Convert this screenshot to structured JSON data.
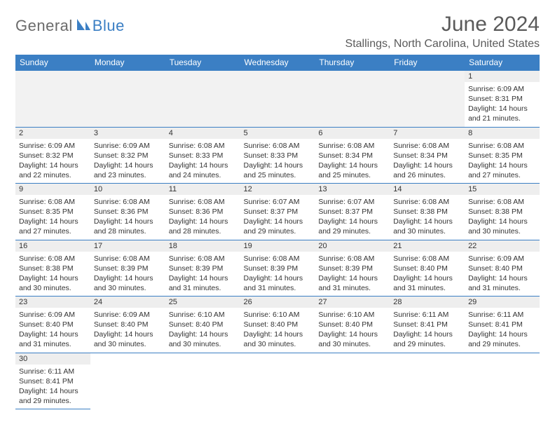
{
  "logo": {
    "text1": "General",
    "text2": "Blue",
    "icon_color": "#3b7fc4"
  },
  "title": "June 2024",
  "location": "Stallings, North Carolina, United States",
  "colors": {
    "header_bg": "#3b7fc4",
    "header_text": "#ffffff",
    "daynum_bg": "#eeeeee",
    "row_border": "#3b7fc4",
    "body_text": "#333333",
    "title_text": "#5a5a5a"
  },
  "weekdays": [
    "Sunday",
    "Monday",
    "Tuesday",
    "Wednesday",
    "Thursday",
    "Friday",
    "Saturday"
  ],
  "days": {
    "1": {
      "sunrise": "Sunrise: 6:09 AM",
      "sunset": "Sunset: 8:31 PM",
      "daylight1": "Daylight: 14 hours",
      "daylight2": "and 21 minutes."
    },
    "2": {
      "sunrise": "Sunrise: 6:09 AM",
      "sunset": "Sunset: 8:32 PM",
      "daylight1": "Daylight: 14 hours",
      "daylight2": "and 22 minutes."
    },
    "3": {
      "sunrise": "Sunrise: 6:09 AM",
      "sunset": "Sunset: 8:32 PM",
      "daylight1": "Daylight: 14 hours",
      "daylight2": "and 23 minutes."
    },
    "4": {
      "sunrise": "Sunrise: 6:08 AM",
      "sunset": "Sunset: 8:33 PM",
      "daylight1": "Daylight: 14 hours",
      "daylight2": "and 24 minutes."
    },
    "5": {
      "sunrise": "Sunrise: 6:08 AM",
      "sunset": "Sunset: 8:33 PM",
      "daylight1": "Daylight: 14 hours",
      "daylight2": "and 25 minutes."
    },
    "6": {
      "sunrise": "Sunrise: 6:08 AM",
      "sunset": "Sunset: 8:34 PM",
      "daylight1": "Daylight: 14 hours",
      "daylight2": "and 25 minutes."
    },
    "7": {
      "sunrise": "Sunrise: 6:08 AM",
      "sunset": "Sunset: 8:34 PM",
      "daylight1": "Daylight: 14 hours",
      "daylight2": "and 26 minutes."
    },
    "8": {
      "sunrise": "Sunrise: 6:08 AM",
      "sunset": "Sunset: 8:35 PM",
      "daylight1": "Daylight: 14 hours",
      "daylight2": "and 27 minutes."
    },
    "9": {
      "sunrise": "Sunrise: 6:08 AM",
      "sunset": "Sunset: 8:35 PM",
      "daylight1": "Daylight: 14 hours",
      "daylight2": "and 27 minutes."
    },
    "10": {
      "sunrise": "Sunrise: 6:08 AM",
      "sunset": "Sunset: 8:36 PM",
      "daylight1": "Daylight: 14 hours",
      "daylight2": "and 28 minutes."
    },
    "11": {
      "sunrise": "Sunrise: 6:08 AM",
      "sunset": "Sunset: 8:36 PM",
      "daylight1": "Daylight: 14 hours",
      "daylight2": "and 28 minutes."
    },
    "12": {
      "sunrise": "Sunrise: 6:07 AM",
      "sunset": "Sunset: 8:37 PM",
      "daylight1": "Daylight: 14 hours",
      "daylight2": "and 29 minutes."
    },
    "13": {
      "sunrise": "Sunrise: 6:07 AM",
      "sunset": "Sunset: 8:37 PM",
      "daylight1": "Daylight: 14 hours",
      "daylight2": "and 29 minutes."
    },
    "14": {
      "sunrise": "Sunrise: 6:08 AM",
      "sunset": "Sunset: 8:38 PM",
      "daylight1": "Daylight: 14 hours",
      "daylight2": "and 30 minutes."
    },
    "15": {
      "sunrise": "Sunrise: 6:08 AM",
      "sunset": "Sunset: 8:38 PM",
      "daylight1": "Daylight: 14 hours",
      "daylight2": "and 30 minutes."
    },
    "16": {
      "sunrise": "Sunrise: 6:08 AM",
      "sunset": "Sunset: 8:38 PM",
      "daylight1": "Daylight: 14 hours",
      "daylight2": "and 30 minutes."
    },
    "17": {
      "sunrise": "Sunrise: 6:08 AM",
      "sunset": "Sunset: 8:39 PM",
      "daylight1": "Daylight: 14 hours",
      "daylight2": "and 30 minutes."
    },
    "18": {
      "sunrise": "Sunrise: 6:08 AM",
      "sunset": "Sunset: 8:39 PM",
      "daylight1": "Daylight: 14 hours",
      "daylight2": "and 31 minutes."
    },
    "19": {
      "sunrise": "Sunrise: 6:08 AM",
      "sunset": "Sunset: 8:39 PM",
      "daylight1": "Daylight: 14 hours",
      "daylight2": "and 31 minutes."
    },
    "20": {
      "sunrise": "Sunrise: 6:08 AM",
      "sunset": "Sunset: 8:39 PM",
      "daylight1": "Daylight: 14 hours",
      "daylight2": "and 31 minutes."
    },
    "21": {
      "sunrise": "Sunrise: 6:08 AM",
      "sunset": "Sunset: 8:40 PM",
      "daylight1": "Daylight: 14 hours",
      "daylight2": "and 31 minutes."
    },
    "22": {
      "sunrise": "Sunrise: 6:09 AM",
      "sunset": "Sunset: 8:40 PM",
      "daylight1": "Daylight: 14 hours",
      "daylight2": "and 31 minutes."
    },
    "23": {
      "sunrise": "Sunrise: 6:09 AM",
      "sunset": "Sunset: 8:40 PM",
      "daylight1": "Daylight: 14 hours",
      "daylight2": "and 31 minutes."
    },
    "24": {
      "sunrise": "Sunrise: 6:09 AM",
      "sunset": "Sunset: 8:40 PM",
      "daylight1": "Daylight: 14 hours",
      "daylight2": "and 30 minutes."
    },
    "25": {
      "sunrise": "Sunrise: 6:10 AM",
      "sunset": "Sunset: 8:40 PM",
      "daylight1": "Daylight: 14 hours",
      "daylight2": "and 30 minutes."
    },
    "26": {
      "sunrise": "Sunrise: 6:10 AM",
      "sunset": "Sunset: 8:40 PM",
      "daylight1": "Daylight: 14 hours",
      "daylight2": "and 30 minutes."
    },
    "27": {
      "sunrise": "Sunrise: 6:10 AM",
      "sunset": "Sunset: 8:40 PM",
      "daylight1": "Daylight: 14 hours",
      "daylight2": "and 30 minutes."
    },
    "28": {
      "sunrise": "Sunrise: 6:11 AM",
      "sunset": "Sunset: 8:41 PM",
      "daylight1": "Daylight: 14 hours",
      "daylight2": "and 29 minutes."
    },
    "29": {
      "sunrise": "Sunrise: 6:11 AM",
      "sunset": "Sunset: 8:41 PM",
      "daylight1": "Daylight: 14 hours",
      "daylight2": "and 29 minutes."
    },
    "30": {
      "sunrise": "Sunrise: 6:11 AM",
      "sunset": "Sunset: 8:41 PM",
      "daylight1": "Daylight: 14 hours",
      "daylight2": "and 29 minutes."
    }
  },
  "layout": {
    "start_weekday_index": 6,
    "num_days": 30
  }
}
